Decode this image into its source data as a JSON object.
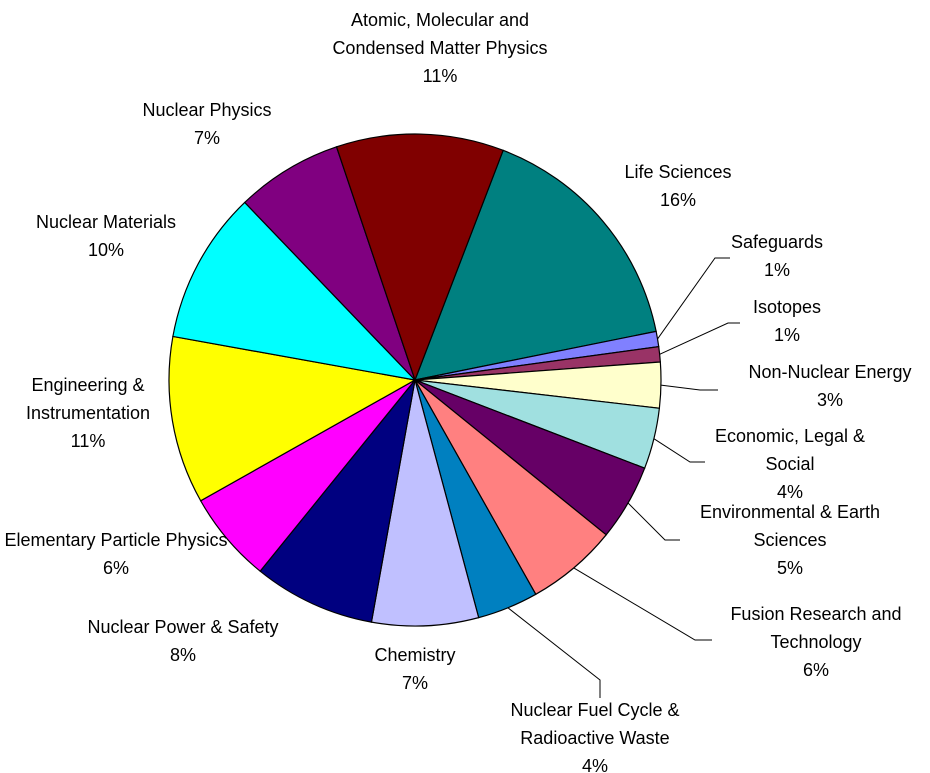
{
  "chart_data": {
    "type": "pie",
    "categories": [
      "Life Sciences",
      "Safeguards",
      "Isotopes",
      "Non-Nuclear Energy",
      "Economic, Legal & Social",
      "Environmental & Earth Sciences",
      "Fusion Research and Technology",
      "Nuclear Fuel Cycle & Radioactive Waste",
      "Chemistry",
      "Nuclear Power & Safety",
      "Elementary Particle Physics",
      "Engineering & Instrumentation",
      "Nuclear Materials",
      "Nuclear Physics",
      "Atomic, Molecular and Condensed Matter Physics"
    ],
    "values": [
      16,
      1,
      1,
      3,
      4,
      5,
      6,
      4,
      7,
      8,
      6,
      11,
      10,
      7,
      11
    ],
    "value_labels": [
      "16%",
      "1%",
      "1%",
      "3%",
      "4%",
      "5%",
      "6%",
      "4%",
      "7%",
      "8%",
      "6%",
      "11%",
      "10%",
      "7%",
      "11%"
    ],
    "colors": [
      "#008080",
      "#8080ff",
      "#993366",
      "#ffffcc",
      "#a0e0e0",
      "#660066",
      "#ff8080",
      "#0080c0",
      "#c0c0ff",
      "#000080",
      "#ff00ff",
      "#ffff00",
      "#00ffff",
      "#800080",
      "#800000"
    ]
  }
}
